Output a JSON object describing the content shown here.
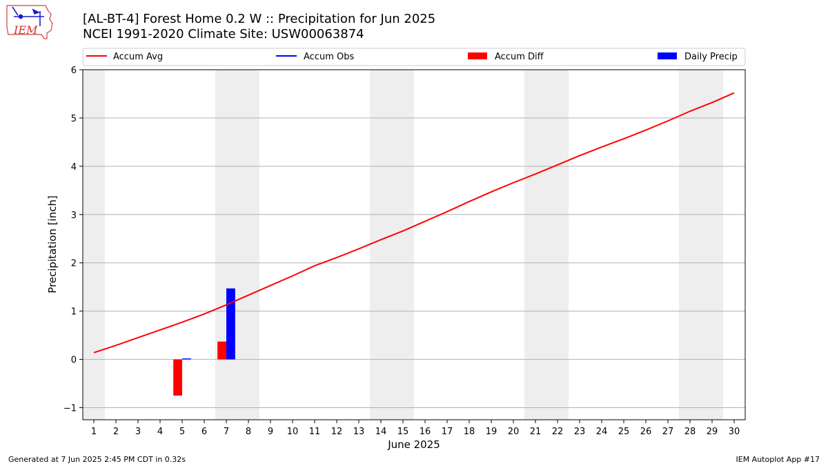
{
  "header": {
    "title_line1": "[AL-BT-4] Forest Home 0.2 W :: Precipitation for Jun 2025",
    "title_line2": "NCEI 1991-2020 Climate Site: USW00063874",
    "logo_text": "IEM"
  },
  "footer": {
    "generated": "Generated at 7 Jun 2025 2:45 PM CDT in 0.32s",
    "app": "IEM Autoplot App #17"
  },
  "colors": {
    "avg": "#ff0000",
    "obs": "#0000ff",
    "diff": "#ff0000",
    "daily": "#0000ff",
    "weekend": "#eeeeee",
    "grid": "#b0b0b0"
  },
  "chart_data": {
    "type": "bar",
    "title": "[AL-BT-4] Forest Home 0.2 W :: Precipitation for Jun 2025",
    "xlabel": "June 2025",
    "ylabel": "Precipitation [inch]",
    "xlim": [
      0.5,
      30.5
    ],
    "ylim": [
      -1.25,
      6.0
    ],
    "yticks": [
      -1,
      0,
      1,
      2,
      3,
      4,
      5,
      6
    ],
    "grid": true,
    "legend_placement": "top",
    "legend": [
      "Accum Avg",
      "Accum Obs",
      "Accum Diff",
      "Daily Precip"
    ],
    "days": [
      1,
      2,
      3,
      4,
      5,
      6,
      7,
      8,
      9,
      10,
      11,
      12,
      13,
      14,
      15,
      16,
      17,
      18,
      19,
      20,
      21,
      22,
      23,
      24,
      25,
      26,
      27,
      28,
      29,
      30
    ],
    "weekend_days": [
      1,
      7,
      8,
      14,
      15,
      21,
      22,
      28,
      29
    ],
    "series": [
      {
        "name": "Accum Avg",
        "type": "line",
        "x": [
          1,
          2,
          3,
          4,
          5,
          6,
          7,
          8,
          9,
          10,
          11,
          12,
          13,
          14,
          15,
          16,
          17,
          18,
          19,
          20,
          21,
          22,
          23,
          24,
          25,
          26,
          27,
          28,
          29,
          30
        ],
        "values": [
          0.14,
          0.29,
          0.45,
          0.61,
          0.77,
          0.94,
          1.13,
          1.33,
          1.53,
          1.73,
          1.94,
          2.11,
          2.29,
          2.48,
          2.66,
          2.86,
          3.06,
          3.27,
          3.47,
          3.66,
          3.84,
          4.03,
          4.22,
          4.4,
          4.57,
          4.75,
          4.94,
          5.14,
          5.32,
          5.52
        ]
      },
      {
        "name": "Accum Obs",
        "type": "line",
        "x": [
          1,
          2,
          3,
          4,
          5,
          6,
          7
        ],
        "values": [
          0,
          0,
          0,
          0,
          0.02,
          0.02,
          1.49
        ]
      },
      {
        "name": "Accum Diff",
        "type": "bar",
        "x": [
          5,
          7
        ],
        "values": [
          -0.75,
          0.37
        ]
      },
      {
        "name": "Daily Precip",
        "type": "bar",
        "x": [
          5,
          7
        ],
        "values": [
          0.02,
          1.47
        ]
      }
    ]
  }
}
